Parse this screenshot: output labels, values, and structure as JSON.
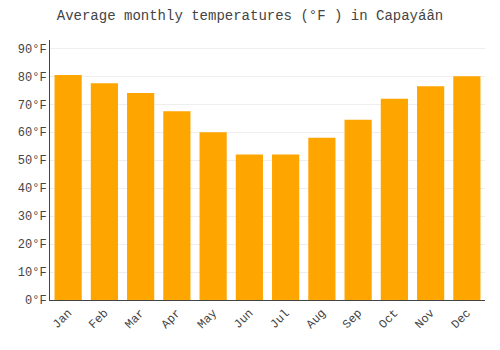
{
  "chart_data": {
    "type": "bar",
    "title": "Average monthly temperatures (°F ) in Capayáân",
    "categories": [
      "Jan",
      "Feb",
      "Mar",
      "Apr",
      "May",
      "Jun",
      "Jul",
      "Aug",
      "Sep",
      "Oct",
      "Nov",
      "Dec"
    ],
    "values": [
      80.5,
      77.5,
      74,
      67.5,
      60,
      52,
      52,
      58,
      64.5,
      72,
      76.5,
      80
    ],
    "color": "#FFA500",
    "ylim": [
      0,
      93
    ],
    "yticks": [
      {
        "value": 0,
        "label": "0°F"
      },
      {
        "value": 10,
        "label": "10°F"
      },
      {
        "value": 20,
        "label": "20°F"
      },
      {
        "value": 30,
        "label": "30°F"
      },
      {
        "value": 40,
        "label": "40°F"
      },
      {
        "value": 50,
        "label": "50°F"
      },
      {
        "value": 60,
        "label": "60°F"
      },
      {
        "value": 70,
        "label": "70°F"
      },
      {
        "value": 80,
        "label": "80°F"
      },
      {
        "value": 90,
        "label": "90°F"
      }
    ],
    "grid": true
  }
}
